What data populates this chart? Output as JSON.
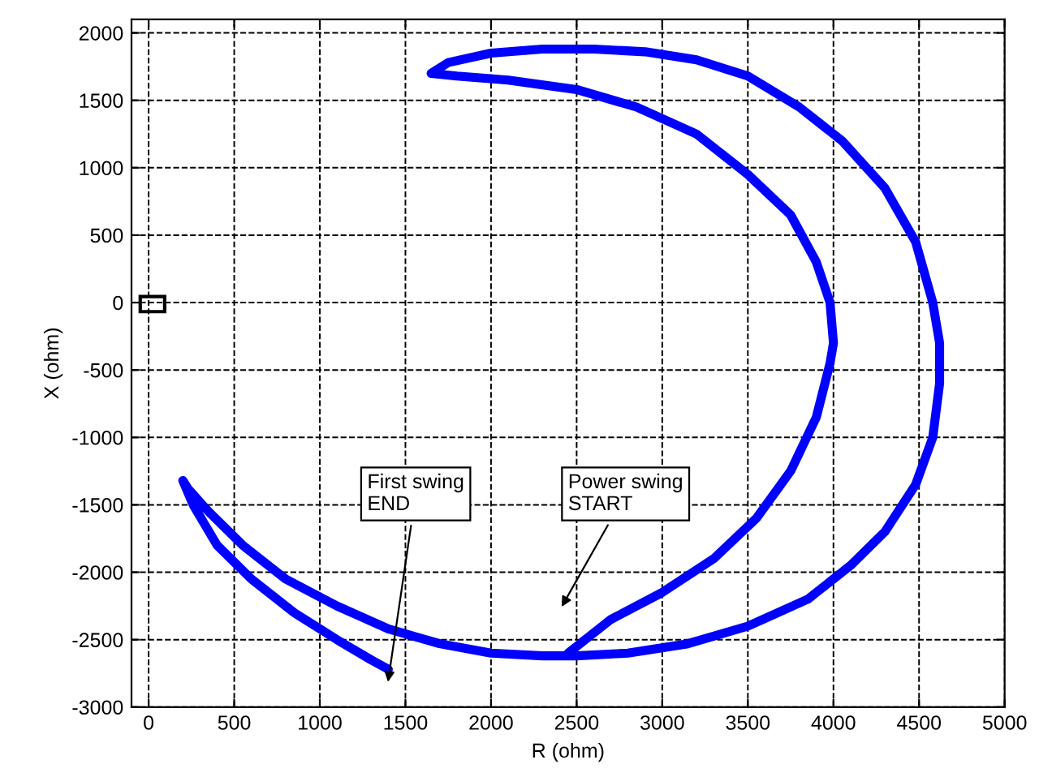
{
  "chart_data": {
    "type": "line",
    "xlabel": "R (ohm)",
    "ylabel": "X (ohm)",
    "xlim": [
      -100,
      5000
    ],
    "ylim": [
      -3000,
      2100
    ],
    "xticks": [
      0,
      500,
      1000,
      1500,
      2000,
      2500,
      3000,
      3500,
      4000,
      4500,
      5000
    ],
    "yticks": [
      -3000,
      -2500,
      -2000,
      -1500,
      -1000,
      -500,
      0,
      500,
      1000,
      1500,
      2000
    ],
    "grid": true,
    "series": [
      {
        "color": "#0000ff",
        "line_style": "solid",
        "x": [
          2450,
          2700,
          3000,
          3300,
          3550,
          3750,
          3900,
          3980,
          4000,
          3980,
          3900,
          3750,
          3500,
          3200,
          2850,
          2500,
          2100,
          1800,
          1650,
          1750,
          2000,
          2300,
          2600,
          2900,
          3200,
          3500,
          3800,
          4050,
          4300,
          4480,
          4580,
          4620,
          4620,
          4580,
          4480,
          4300,
          4100,
          3850,
          3500,
          3150,
          2800,
          2500,
          2300,
          2000,
          1700,
          1400,
          1100,
          800,
          550,
          350,
          230,
          200,
          260,
          400,
          600,
          850,
          1100,
          1300,
          1400
        ],
        "values": [
          -2600,
          -2350,
          -2150,
          -1900,
          -1600,
          -1250,
          -850,
          -450,
          -300,
          0,
          300,
          650,
          950,
          1250,
          1450,
          1580,
          1650,
          1680,
          1700,
          1780,
          1850,
          1880,
          1880,
          1860,
          1800,
          1680,
          1450,
          1200,
          850,
          450,
          0,
          -300,
          -600,
          -1000,
          -1350,
          -1700,
          -1950,
          -2200,
          -2400,
          -2530,
          -2600,
          -2620,
          -2620,
          -2600,
          -2530,
          -2420,
          -2250,
          -2050,
          -1800,
          -1550,
          -1380,
          -1320,
          -1500,
          -1800,
          -2050,
          -2300,
          -2500,
          -2650,
          -2720
        ]
      }
    ],
    "annotations": [
      "First swing\nEND",
      "Power swing\nSTART"
    ]
  }
}
